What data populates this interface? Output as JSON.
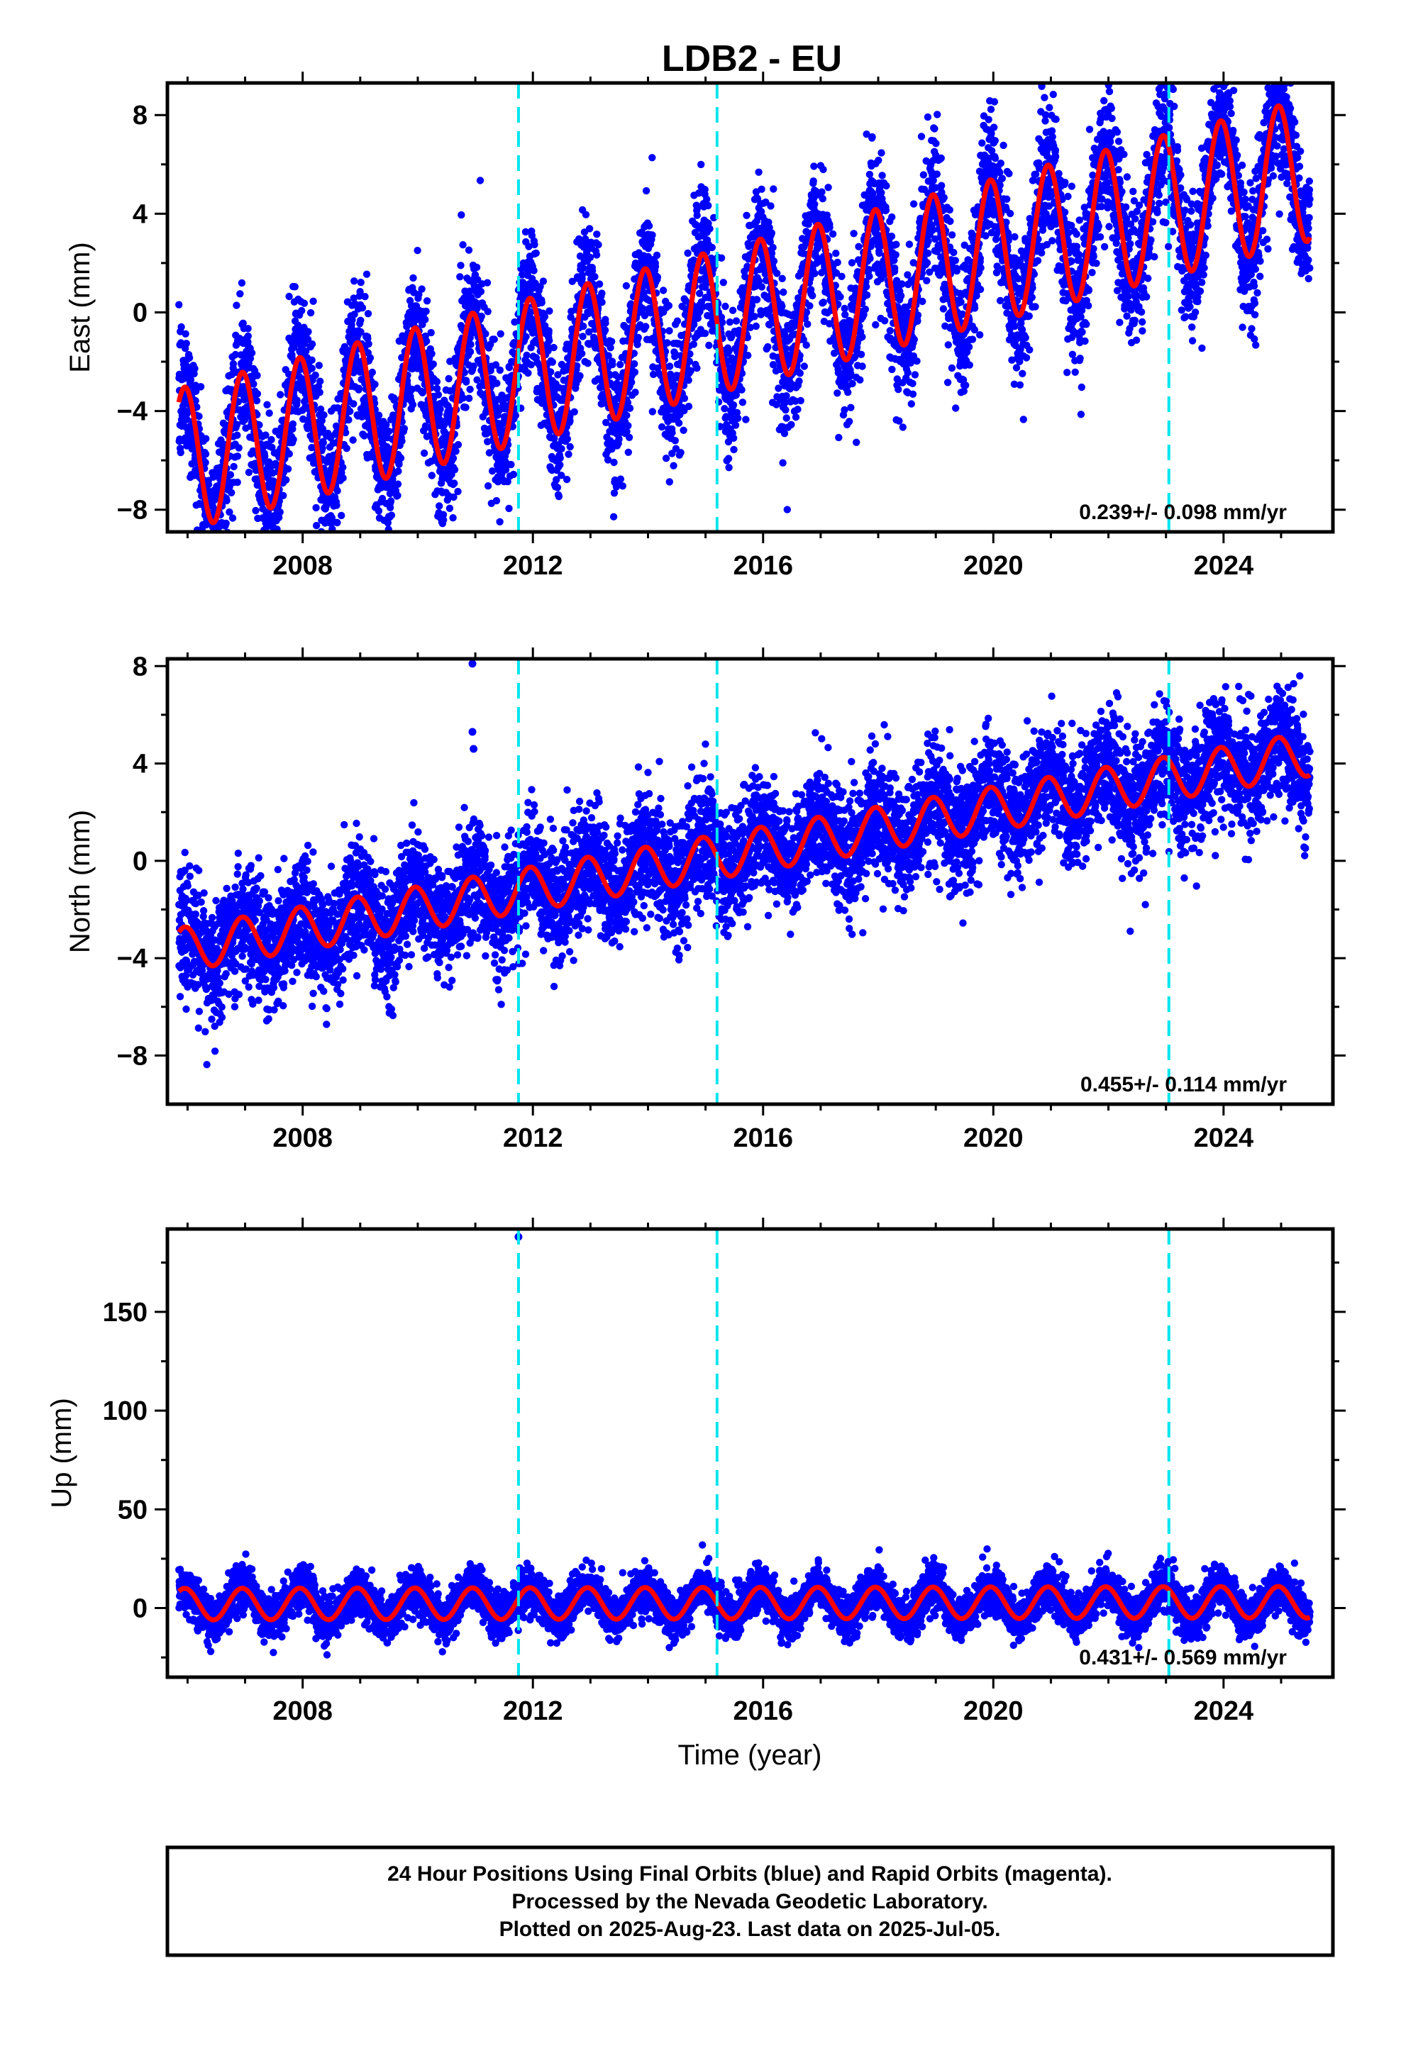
{
  "title": "LDB2 - EU",
  "x_axis_label": "Time (year)",
  "footer": {
    "lines": [
      "24 Hour Positions Using Final Orbits (blue) and Rapid Orbits (magenta).",
      "Processed by the Nevada Geodetic Laboratory.",
      "Plotted on 2025-Aug-23. Last data on 2025-Jul-05."
    ]
  },
  "colors": {
    "data_points": "#0000ff",
    "model_fit": "#ff0000",
    "step_lines": "#00e5ee",
    "frame": "#000000"
  },
  "chart_data": [
    {
      "type": "scatter",
      "name": "east",
      "ylabel": "East (mm)",
      "xlim": [
        2005.65,
        2025.9
      ],
      "ylim": [
        -8.9,
        9.3
      ],
      "yticks": [
        -8,
        -4,
        0,
        4,
        8
      ],
      "xticks": [
        2008,
        2012,
        2016,
        2020,
        2024
      ],
      "step_lines_x": [
        2011.75,
        2015.2,
        2023.05
      ],
      "rate_text": "0.239+/- 0.098 mm/yr",
      "model": {
        "offset": -5.9,
        "rate": 0.6,
        "amplitude": 2.9,
        "t0": 2006.0,
        "amp_growth": 0
      },
      "data": {
        "start": 2005.85,
        "end": 2025.5,
        "noise_mm": 1.4,
        "outliers": []
      }
    },
    {
      "type": "scatter",
      "name": "north",
      "ylabel": "North (mm)",
      "xlim": [
        2005.65,
        2025.9
      ],
      "ylim": [
        -10.0,
        8.3
      ],
      "yticks": [
        -8,
        -4,
        0,
        4,
        8
      ],
      "xticks": [
        2008,
        2012,
        2016,
        2020,
        2024
      ],
      "step_lines_x": [
        2011.75,
        2015.2,
        2023.05
      ],
      "rate_text": "0.455+/- 0.114 mm/yr",
      "model": {
        "offset": -3.6,
        "rate": 0.41,
        "amplitude": 0.9,
        "t0": 2006.0,
        "amp_growth": 0
      },
      "data": {
        "start": 2005.85,
        "end": 2025.5,
        "noise_mm": 1.2,
        "outliers": [
          [
            2010.95,
            8.1
          ],
          [
            2010.95,
            5.3
          ],
          [
            2010.97,
            4.6
          ],
          [
            2005.95,
            -0.4
          ]
        ]
      }
    },
    {
      "type": "scatter",
      "name": "up",
      "ylabel": "Up (mm)",
      "xlim": [
        2005.65,
        2025.9
      ],
      "ylim": [
        -35,
        192
      ],
      "yticks": [
        0,
        50,
        100,
        150
      ],
      "xticks": [
        2008,
        2012,
        2016,
        2020,
        2024
      ],
      "step_lines_x": [
        2011.75,
        2015.2,
        2023.05
      ],
      "rate_text": "0.431+/- 0.569 mm/yr",
      "model": {
        "offset": 2.0,
        "rate": 0.05,
        "amplitude": 8.0,
        "t0": 2006.0,
        "amp_growth": 0
      },
      "data": {
        "start": 2005.85,
        "end": 2025.5,
        "noise_mm": 5.5,
        "outliers": [
          [
            2011.75,
            188
          ]
        ]
      }
    }
  ]
}
